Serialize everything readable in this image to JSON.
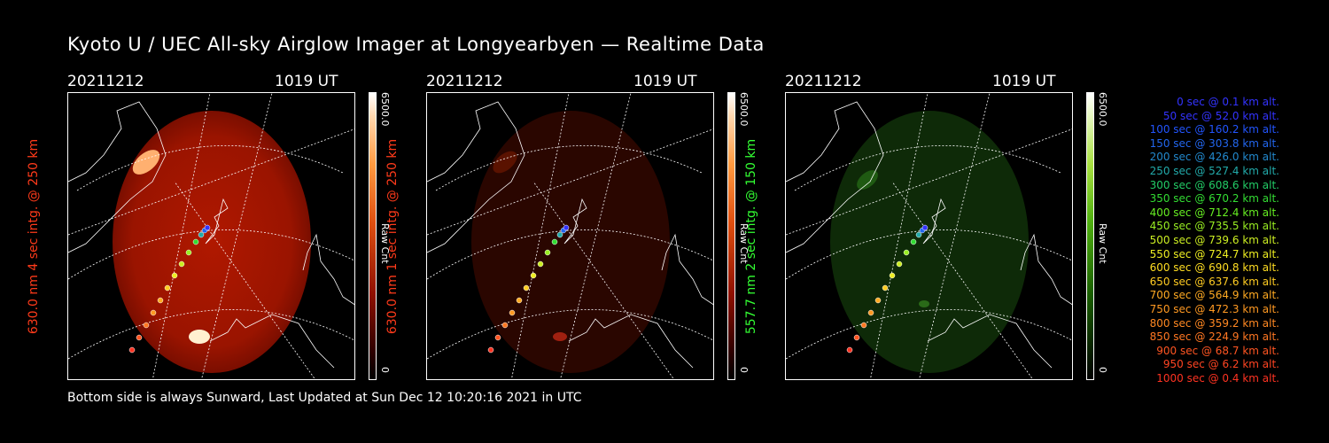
{
  "title": "Kyoto U / UEC All-sky Airglow Imager at Longyearbyen — Realtime Data",
  "panels": [
    {
      "date": "20211212",
      "time": "1019 UT",
      "ylabel": "630.0 nm 4 sec intg. @ 250 km",
      "label_color": "#ff3a1a",
      "cbar_max": "6500.0",
      "cbar_unit": "Raw Cnt",
      "cbar_min": "0",
      "glow": "bright-red"
    },
    {
      "date": "20211212",
      "time": "1019 UT",
      "ylabel": "630.0 nm 1 sec intg. @ 250 km",
      "label_color": "#ff3a1a",
      "cbar_max": "6500.0",
      "cbar_unit": "Raw Cnt",
      "cbar_min": "0",
      "glow": "dim-red"
    },
    {
      "date": "20211212",
      "time": "1019 UT",
      "ylabel": "557.7 nm 2 sec intg. @ 150 km",
      "label_color": "#33ff33",
      "cbar_max": "6500.0",
      "cbar_unit": "Raw Cnt",
      "cbar_min": "0",
      "glow": "green"
    }
  ],
  "legend": [
    {
      "text": "0 sec @   0.1 km alt.",
      "color": "#3333ff"
    },
    {
      "text": "50 sec @  52.0 km alt.",
      "color": "#3333ff"
    },
    {
      "text": "100 sec @ 160.2 km alt.",
      "color": "#2255ff"
    },
    {
      "text": "150 sec @ 303.8 km alt.",
      "color": "#2266ee"
    },
    {
      "text": "200 sec @ 426.0 km alt.",
      "color": "#2288cc"
    },
    {
      "text": "250 sec @ 527.4 km alt.",
      "color": "#22aaaa"
    },
    {
      "text": "300 sec @ 608.6 km alt.",
      "color": "#22cc66"
    },
    {
      "text": "350 sec @ 670.2 km alt.",
      "color": "#33dd33"
    },
    {
      "text": "400 sec @ 712.4 km alt.",
      "color": "#66ee22"
    },
    {
      "text": "450 sec @ 735.5 km alt.",
      "color": "#99ee22"
    },
    {
      "text": "500 sec @ 739.6 km alt.",
      "color": "#ccee22"
    },
    {
      "text": "550 sec @ 724.7 km alt.",
      "color": "#eeee22"
    },
    {
      "text": "600 sec @ 690.8 km alt.",
      "color": "#ffdd22"
    },
    {
      "text": "650 sec @ 637.6 km alt.",
      "color": "#ffcc22"
    },
    {
      "text": "700 sec @ 564.9 km alt.",
      "color": "#ffaa22"
    },
    {
      "text": "750 sec @ 472.3 km alt.",
      "color": "#ff9922"
    },
    {
      "text": "800 sec @ 359.2 km alt.",
      "color": "#ff8822"
    },
    {
      "text": "850 sec @ 224.9 km alt.",
      "color": "#ff7722"
    },
    {
      "text": "900 sec @  68.7 km alt.",
      "color": "#ff5522"
    },
    {
      "text": "950 sec @   6.2 km alt.",
      "color": "#ff4422"
    },
    {
      "text": "1000 sec @   0.4 km alt.",
      "color": "#ff3322"
    }
  ],
  "footer": "Bottom side is always Sunward, Last Updated at Sun Dec 12 10:20:16 2021 in UTC"
}
